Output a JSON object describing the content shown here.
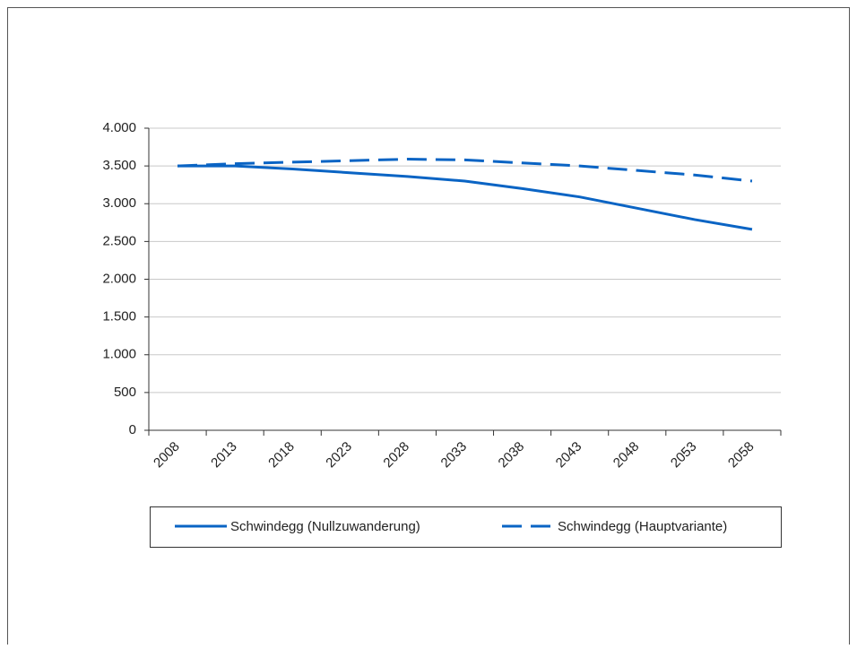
{
  "chart_data": {
    "type": "line",
    "categories": [
      "2008",
      "2013",
      "2018",
      "2023",
      "2028",
      "2033",
      "2038",
      "2043",
      "2048",
      "2053",
      "2058"
    ],
    "series": [
      {
        "name": "Schwindegg (Nullzuwanderung)",
        "color": "#0a64c4",
        "dash": false,
        "values": [
          3500,
          3500,
          3460,
          3410,
          3360,
          3300,
          3200,
          3090,
          2940,
          2790,
          2660
        ]
      },
      {
        "name": "Schwindegg (Hauptvariante)",
        "color": "#0a64c4",
        "dash": true,
        "values": [
          3500,
          3530,
          3550,
          3570,
          3590,
          3580,
          3540,
          3500,
          3440,
          3380,
          3300
        ]
      }
    ],
    "ylim": [
      0,
      4000
    ],
    "yticks": [
      0,
      500,
      {
        "value": 1000,
        "label": "1.000"
      },
      {
        "value": 1500,
        "label": "1.500"
      },
      {
        "value": 2000,
        "label": "2.000"
      },
      {
        "value": 2500,
        "label": "2.500"
      },
      {
        "value": 3000,
        "label": "3.000"
      },
      {
        "value": 3500,
        "label": "3.500"
      },
      {
        "value": 4000,
        "label": "4.000"
      }
    ],
    "grid": true
  }
}
